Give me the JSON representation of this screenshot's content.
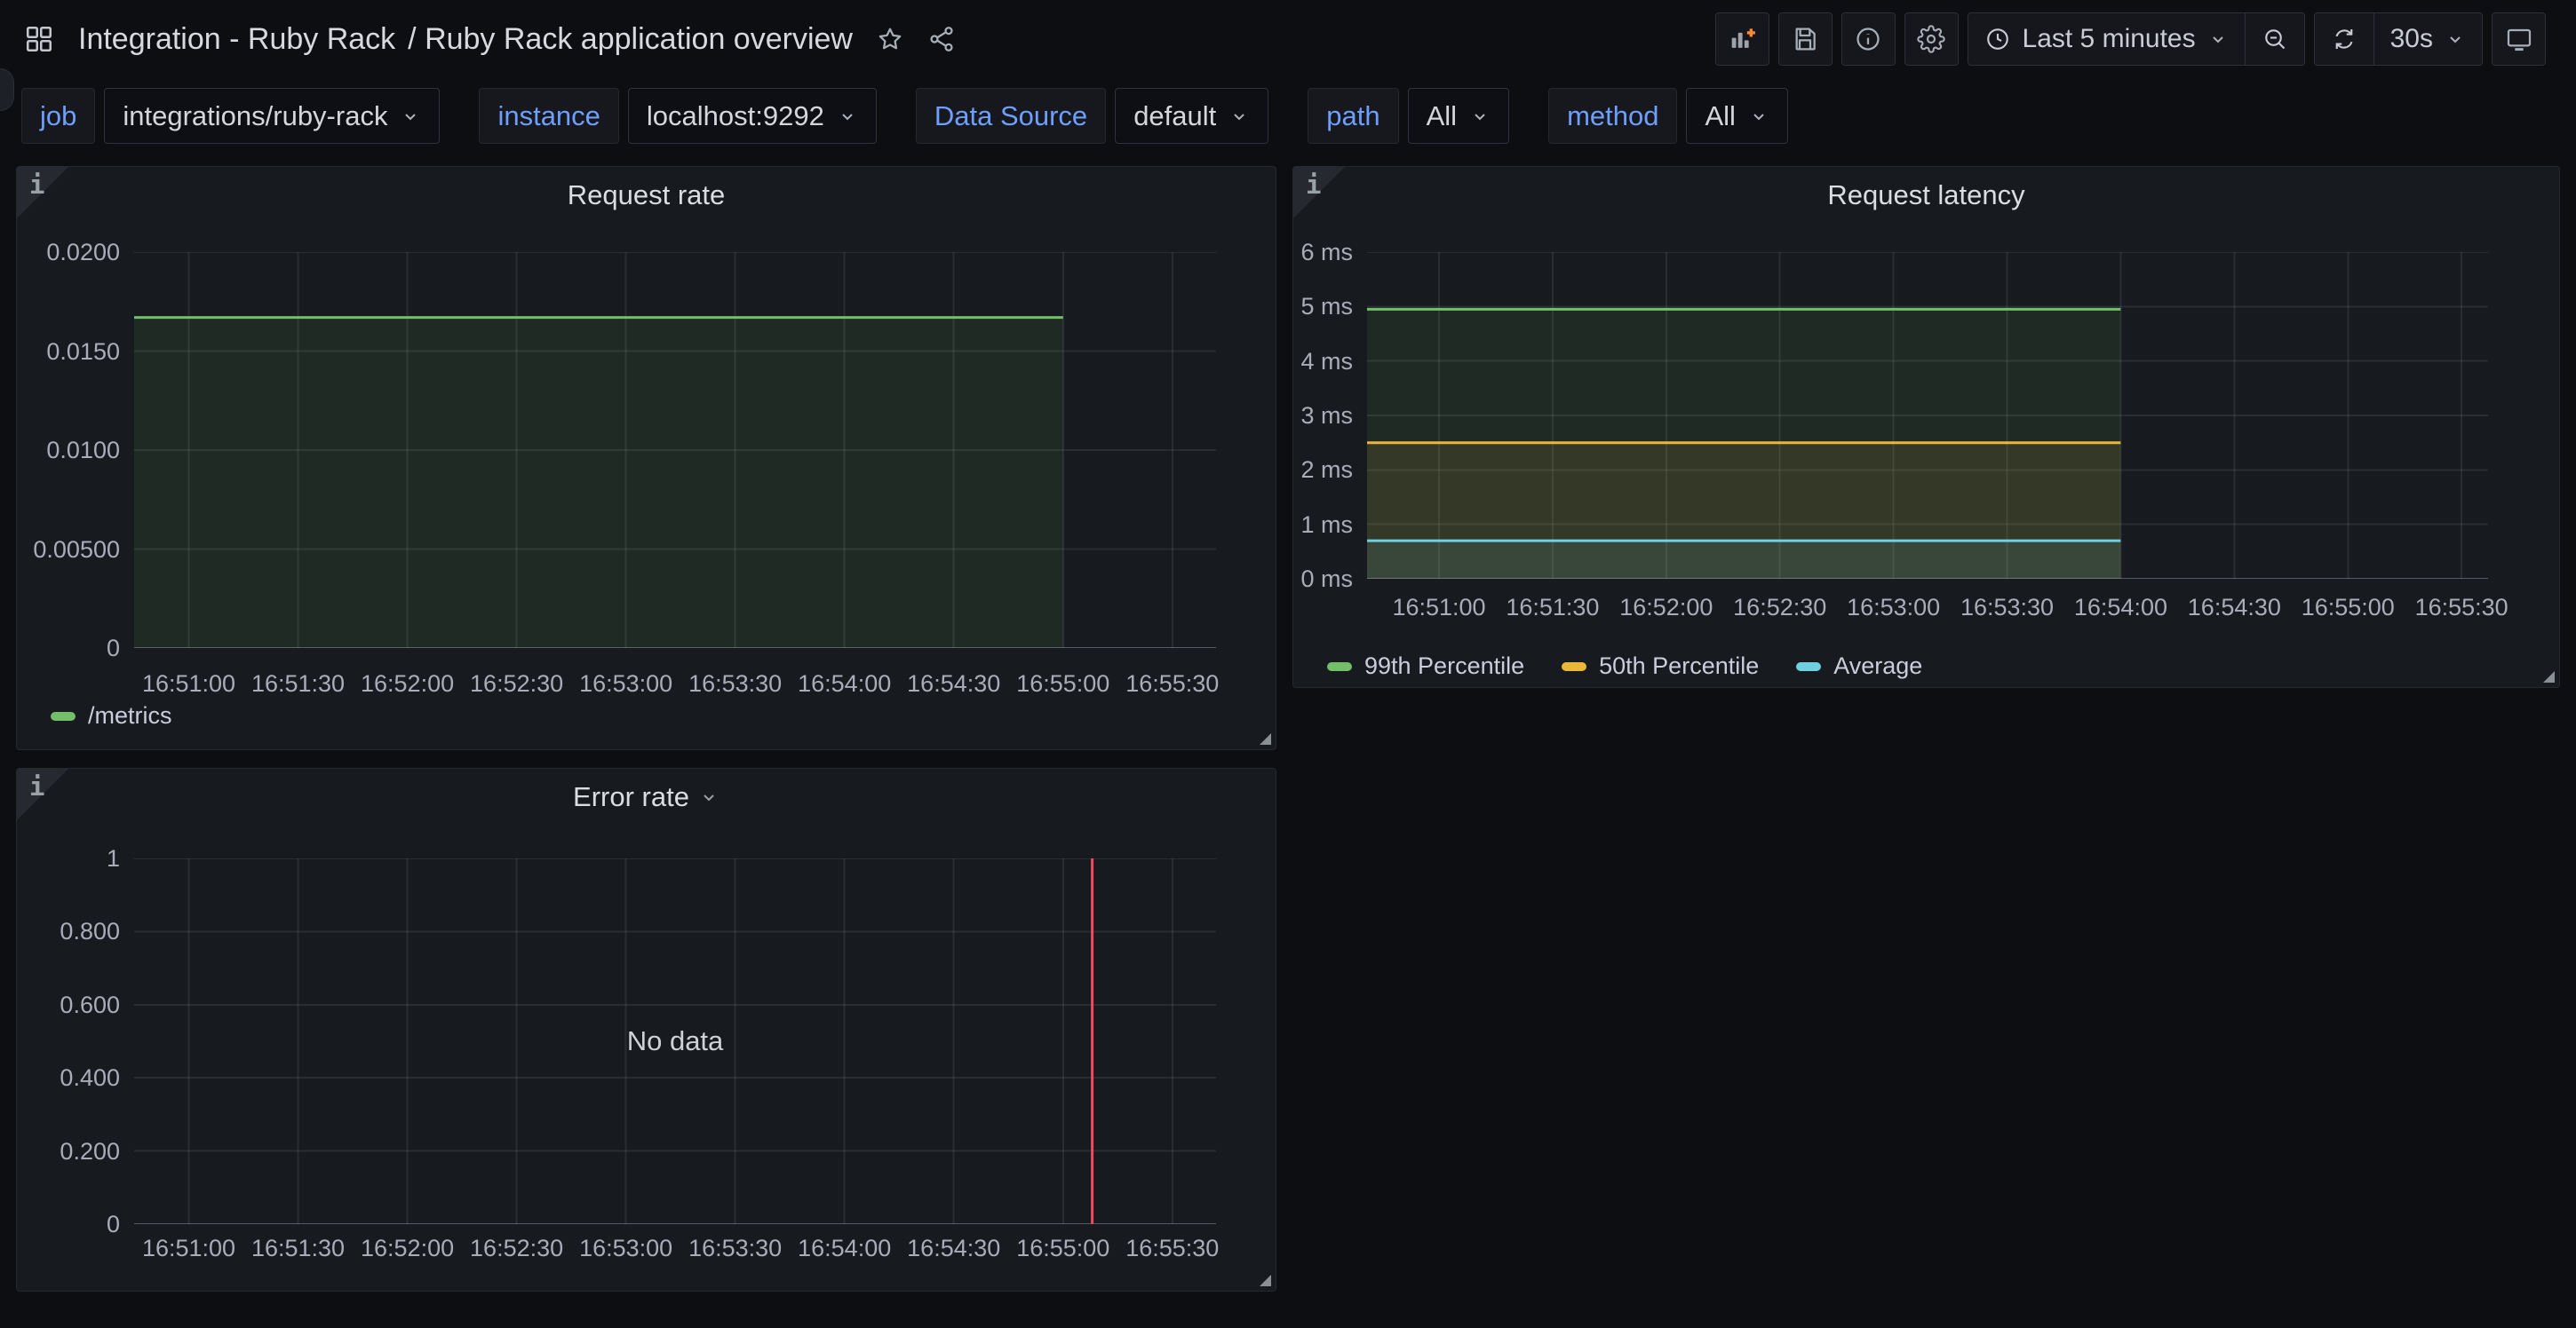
{
  "page": {
    "background": "#0c0e12",
    "panel_background": "#171a1e",
    "accent_blue": "#6E9FFF",
    "annotation_red": "#F2495C"
  },
  "glyphs": {
    "corner_info": "i"
  },
  "header": {
    "title_primary": "Integration - Ruby Rack",
    "title_secondary": "/ Ruby Rack application overview",
    "icons_left": [
      "apps-grid-icon",
      "star-icon",
      "share-icon"
    ],
    "toolbar": {
      "buttons": [
        "add-panel",
        "save-dashboard",
        "dashboard-info",
        "dashboard-settings"
      ],
      "time_icon": "clock-icon",
      "time_range_label": "Last 5 minutes",
      "zoom_out_icon": "magnifier-minus-icon",
      "refresh_icon": "refresh-icon",
      "refresh_interval": "30s",
      "kiosk_icon": "tv-monitor-icon"
    }
  },
  "variables": [
    {
      "label": "job",
      "value": "integrations/ruby-rack"
    },
    {
      "label": "instance",
      "value": "localhost:9292"
    },
    {
      "label": "Data Source",
      "value": "default"
    },
    {
      "label": "path",
      "value": "All"
    },
    {
      "label": "method",
      "value": "All"
    }
  ],
  "chart_data": [
    {
      "type": "line",
      "title": "Request rate",
      "x_axis": {
        "start": "16:50:45",
        "end": "16:55:42",
        "ticks": [
          "16:51:00",
          "16:51:30",
          "16:52:00",
          "16:52:30",
          "16:53:00",
          "16:53:30",
          "16:54:00",
          "16:54:30",
          "16:55:00",
          "16:55:30"
        ]
      },
      "y_axis": {
        "max": 0.02,
        "ticks": [
          {
            "label": "0",
            "value": 0
          },
          {
            "label": "0.00500",
            "value": 0.005
          },
          {
            "label": "0.0100",
            "value": 0.01
          },
          {
            "label": "0.0150",
            "value": 0.015
          },
          {
            "label": "0.0200",
            "value": 0.02
          }
        ]
      },
      "series": [
        {
          "name": "/metrics",
          "color": "#73BF69",
          "fill_opacity": 0.1,
          "value": 0.0167,
          "from": "16:50:45",
          "to": "16:55:00"
        }
      ],
      "legend": {
        "items": [
          {
            "label": "/metrics",
            "color": "#73BF69"
          }
        ]
      }
    },
    {
      "type": "line",
      "title": "Request latency",
      "x_axis": {
        "start": "16:50:41",
        "end": "16:55:37",
        "ticks": [
          "16:51:00",
          "16:51:30",
          "16:52:00",
          "16:52:30",
          "16:53:00",
          "16:53:30",
          "16:54:00",
          "16:54:30",
          "16:55:00",
          "16:55:30"
        ]
      },
      "y_axis": {
        "max": 6,
        "ticks": [
          {
            "label": "0 ms",
            "value": 0
          },
          {
            "label": "1 ms",
            "value": 1
          },
          {
            "label": "2 ms",
            "value": 2
          },
          {
            "label": "3 ms",
            "value": 3
          },
          {
            "label": "4 ms",
            "value": 4
          },
          {
            "label": "5 ms",
            "value": 5
          },
          {
            "label": "6 ms",
            "value": 6
          }
        ]
      },
      "series": [
        {
          "name": "99th Percentile",
          "color": "#73BF69",
          "fill_opacity": 0.1,
          "value": 4.95,
          "from": "16:50:41",
          "to": "16:54:00"
        },
        {
          "name": "50th Percentile",
          "color": "#EAB839",
          "fill_opacity": 0.1,
          "value": 2.5,
          "from": "16:50:41",
          "to": "16:54:00"
        },
        {
          "name": "Average",
          "color": "#6ED0E0",
          "fill_opacity": 0.1,
          "value": 0.7,
          "from": "16:50:41",
          "to": "16:54:00"
        }
      ],
      "legend": {
        "items": [
          {
            "label": "99th Percentile",
            "color": "#73BF69"
          },
          {
            "label": "50th Percentile",
            "color": "#EAB839"
          },
          {
            "label": "Average",
            "color": "#6ED0E0"
          }
        ]
      }
    },
    {
      "type": "line",
      "title": "Error rate",
      "x_axis": {
        "start": "16:50:45",
        "end": "16:55:42",
        "ticks": [
          "16:51:00",
          "16:51:30",
          "16:52:00",
          "16:52:30",
          "16:53:00",
          "16:53:30",
          "16:54:00",
          "16:54:30",
          "16:55:00",
          "16:55:30"
        ]
      },
      "y_axis": {
        "max": 1,
        "ticks": [
          {
            "label": "0",
            "value": 0
          },
          {
            "label": "0.200",
            "value": 0.2
          },
          {
            "label": "0.400",
            "value": 0.4
          },
          {
            "label": "0.600",
            "value": 0.6
          },
          {
            "label": "0.800",
            "value": 0.8
          },
          {
            "label": "1",
            "value": 1
          }
        ]
      },
      "series": [],
      "no_data": "No data",
      "annotations": [
        {
          "time": "16:55:08",
          "color": "#F2495C"
        }
      ]
    }
  ]
}
